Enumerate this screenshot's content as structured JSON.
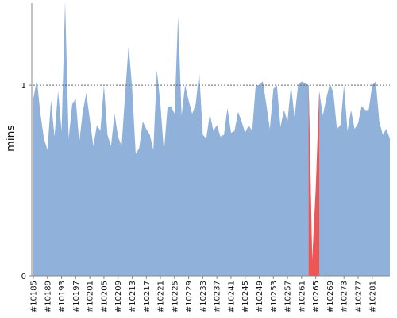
{
  "chart_data": {
    "type": "area",
    "ylabel": "mins",
    "xlabel": "",
    "title": "",
    "ylim": [
      0,
      1.43
    ],
    "y_ticks": [
      {
        "value": 0,
        "label": "0"
      },
      {
        "value": 1,
        "label": "1"
      }
    ],
    "reference_line": {
      "value": 1,
      "style": "dotted"
    },
    "grid": false,
    "x_tick_labels": [
      "#10185",
      "#10189",
      "#10193",
      "#10197",
      "#10201",
      "#10205",
      "#10209",
      "#10213",
      "#10217",
      "#10221",
      "#10225",
      "#10229",
      "#10233",
      "#10237",
      "#10241",
      "#10245",
      "#10249",
      "#10253",
      "#10257",
      "#10261",
      "#10265",
      "#10269",
      "#10273",
      "#10277",
      "#10281"
    ],
    "x_start": 10185,
    "colors": {
      "normal": "#8fb1da",
      "highlight": "#ee5555",
      "reference": "#666666",
      "axis": "#888888"
    },
    "highlight_range": [
      10263,
      10266
    ],
    "series": [
      {
        "x": [
          10185,
          10186,
          10187,
          10188,
          10189,
          10190,
          10191,
          10192,
          10193,
          10194,
          10195,
          10196,
          10197,
          10198,
          10199,
          10200,
          10201,
          10202,
          10203,
          10204,
          10205,
          10206,
          10207,
          10208,
          10209,
          10210,
          10211,
          10212,
          10213,
          10214,
          10215,
          10216,
          10217,
          10218,
          10219,
          10220,
          10221,
          10222,
          10223,
          10224,
          10225,
          10226,
          10227,
          10228,
          10229,
          10230,
          10231,
          10232,
          10233,
          10234,
          10235,
          10236,
          10237,
          10238,
          10239,
          10240,
          10241,
          10242,
          10243,
          10244,
          10245,
          10246,
          10247,
          10248,
          10249,
          10250,
          10251,
          10252,
          10253,
          10254,
          10255,
          10256,
          10257,
          10258,
          10259,
          10260,
          10261,
          10262,
          10263,
          10264,
          10265,
          10266,
          10267,
          10268,
          10269,
          10270,
          10271,
          10272,
          10273,
          10274,
          10275,
          10276,
          10277,
          10278,
          10279,
          10280,
          10281,
          10282,
          10283,
          10284,
          10285,
          10286
        ],
        "y": [
          0.93,
          1.03,
          0.85,
          0.72,
          0.66,
          0.92,
          0.73,
          0.97,
          0.76,
          1.44,
          0.72,
          0.9,
          0.93,
          0.7,
          0.86,
          0.96,
          0.82,
          0.68,
          0.79,
          0.76,
          1.0,
          0.74,
          0.68,
          0.85,
          0.73,
          0.68,
          0.95,
          1.21,
          0.98,
          0.64,
          0.67,
          0.81,
          0.77,
          0.74,
          0.66,
          1.08,
          0.9,
          0.65,
          0.88,
          0.89,
          0.85,
          1.36,
          0.84,
          1.0,
          0.92,
          0.85,
          0.9,
          1.07,
          0.74,
          0.72,
          0.85,
          0.76,
          0.79,
          0.73,
          0.74,
          0.88,
          0.75,
          0.76,
          0.86,
          0.81,
          0.75,
          0.79,
          0.76,
          1.0,
          1.0,
          1.02,
          0.9,
          0.77,
          0.98,
          1.0,
          0.78,
          0.87,
          0.81,
          1.0,
          0.83,
          1.0,
          1.02,
          1.01,
          1.0,
          0.08,
          0.45,
          0.97,
          0.84,
          0.93,
          1.01,
          0.96,
          0.77,
          0.79,
          1.0,
          0.76,
          0.87,
          0.77,
          0.8,
          0.89,
          0.87,
          0.87,
          1.0,
          1.02,
          0.81,
          0.74,
          0.77,
          0.72
        ]
      }
    ]
  }
}
